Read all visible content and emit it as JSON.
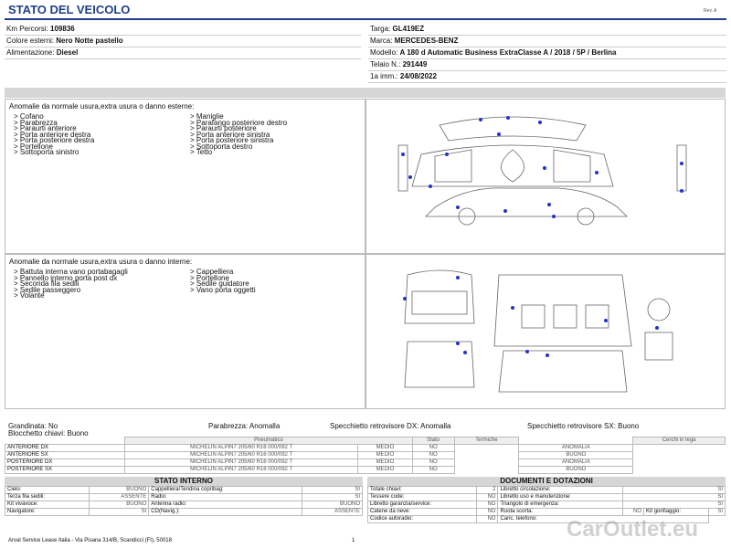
{
  "header": {
    "title": "STATO DEL VEICOLO",
    "rev": "Rev. A"
  },
  "vehicle": {
    "left": [
      {
        "label": "Km Percorsi:",
        "value": "109836"
      },
      {
        "label": "Colore esterni:",
        "value": "Nero Notte pastello"
      },
      {
        "label": "Alimentazione:",
        "value": "Diesel"
      }
    ],
    "right": [
      {
        "label": "Targa:",
        "value": "GL419EZ"
      },
      {
        "label": "Marca:",
        "value": "MERCEDES-BENZ"
      },
      {
        "label": "Modello:",
        "value": "A 180 d Automatic Business ExtraClasse A / 2018 / 5P / Berlina"
      },
      {
        "label": "Telaio N.:",
        "value": "291449"
      },
      {
        "label": "1a imm.:",
        "value": "24/08/2022"
      }
    ]
  },
  "external": {
    "title": "Anomalie da normale usura,extra usura o danno esterne:",
    "col1": [
      "> Cofano",
      "> Parabrezza",
      "> Paraurti anteriore",
      "> Porta anteriore destra",
      "> Porta posteriore destra",
      "> Portellone",
      "> Sottoporta sinistro"
    ],
    "col2": [
      "> Maniglie",
      "> Parafango posteriore destro",
      "> Paraurti posteriore",
      "> Porta anteriore sinistra",
      "> Porta posteriore sinistra",
      "> Sottoporta destro",
      "> Tetto"
    ]
  },
  "internal": {
    "title": "Anomalie da normale usura,extra usura o danno interne:",
    "col1": [
      "> Battuta interna vano portabagagli",
      "> Pannello interno porta post dx",
      "> Seconda fila sedili",
      "> Sedile passeggero",
      "> Volante"
    ],
    "col2": [
      "> Cappelliera",
      "> Portellone",
      "> Sedile guidatore",
      "> Vano porta oggetti"
    ]
  },
  "status": {
    "left": [
      "Grandinata: No",
      "Blocchetto chiavi: Buono"
    ],
    "right": [
      "Parabrezza: Anomalla",
      "Specchietto retrovisore DX: Anomalla",
      "Specchietto retrovisore SX: Buono"
    ]
  },
  "tyres": {
    "headers": [
      "Pneumatico",
      "Stato",
      "Termiche",
      "Cerchi in lega"
    ],
    "rows": [
      [
        "ANTERIORE DX",
        "MICHELIN ALPIN7 205/60 R16 000/092 T",
        "MEDIO",
        "NO",
        "ANOMALIA"
      ],
      [
        "ANTERIORE SX",
        "MICHELIN ALPIN7 205/60 R16 000/092 T",
        "MEDIO",
        "NO",
        "BUONO"
      ],
      [
        "POSTERIORE DX",
        "MICHELIN ALPIN7 205/60 R16 000/092 T",
        "MEDIO",
        "NO",
        "ANOMALIA"
      ],
      [
        "POSTERIORE SX",
        "MICHELIN ALPIN7 205/60 R16 000/092 T",
        "MEDIO",
        "NO",
        "BUONO"
      ]
    ]
  },
  "interior_state": {
    "title": "STATO INTERNO",
    "rows": [
      [
        [
          "Cielo:",
          "BUONO"
        ],
        [
          "Cappelliera/Tendina copribag:",
          "SI"
        ]
      ],
      [
        [
          "Terza fila sedili:",
          "ASSENTE"
        ],
        [
          "Radio:",
          "SI"
        ]
      ],
      [
        [
          "Kit vivavoce:",
          "BUONO"
        ],
        [
          "Antenna radio:",
          "BUONO"
        ]
      ],
      [
        [
          "Navigatore:",
          "SI"
        ],
        [
          "CD(Navig.):",
          "ASSENTE"
        ]
      ]
    ]
  },
  "documents": {
    "title": "DOCUMENTI E DOTAZIONI",
    "rows": [
      [
        [
          "Totale chiavi:",
          "2"
        ],
        [
          "Libretto circolazione:",
          "SI"
        ]
      ],
      [
        [
          "Tessere code:",
          "NO"
        ],
        [
          "Libretto uso e manutenzione:",
          "SI"
        ]
      ],
      [
        [
          "Libretto garanzia/service:",
          "NO"
        ],
        [
          "Triangolo di emergenza:",
          "SI"
        ]
      ],
      [
        [
          "Catene da neve:",
          "NO"
        ],
        [
          "Ruota scorta:",
          "NO"
        ],
        [
          "Kit gonfiaggio:",
          "SI"
        ]
      ],
      [
        [
          "Codice autoradio:",
          "NO"
        ],
        [
          "Caric. telefono:"
        ]
      ]
    ]
  },
  "footer": {
    "address": "Arval Service Lease Italia - Via Pisana 314/B, Scandicci (FI), 50018",
    "page": "1",
    "watermark": "CarOutlet.eu"
  }
}
